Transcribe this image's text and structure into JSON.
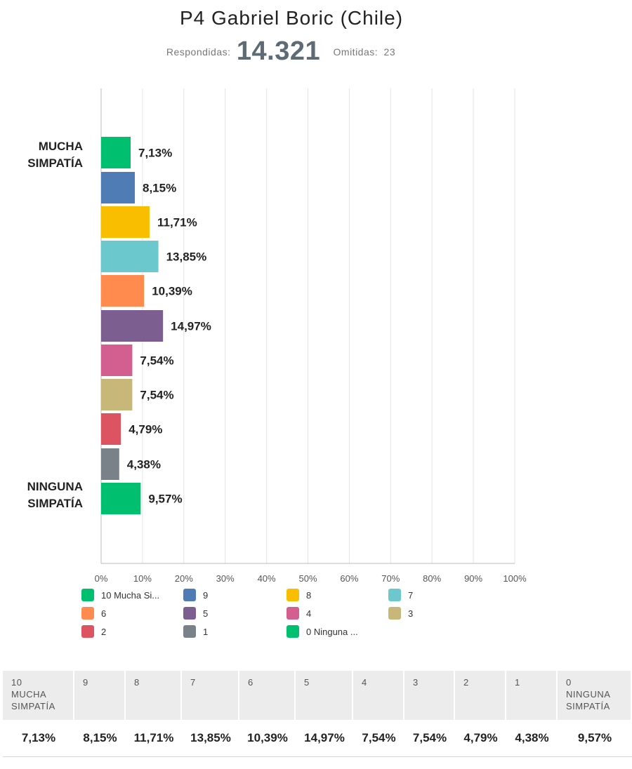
{
  "header": {
    "title": "P4 Gabriel Boric (Chile)",
    "answered_label": "Respondidas:",
    "answered_value": "14.321",
    "skipped_label": "Omitidas:",
    "skipped_value": "23"
  },
  "chart_data": {
    "type": "bar",
    "orientation": "horizontal",
    "categories": [
      "MUCHA SIMPATÍA",
      "NINGUNA SIMPATÍA"
    ],
    "series": [
      {
        "name": "10 Mucha Si...",
        "value": 7.13,
        "label": "7,13%",
        "color": "#00BF6F"
      },
      {
        "name": "9",
        "value": 8.15,
        "label": "8,15%",
        "color": "#507CB6"
      },
      {
        "name": "8",
        "value": 11.71,
        "label": "11,71%",
        "color": "#F9BE00"
      },
      {
        "name": "7",
        "value": 13.85,
        "label": "13,85%",
        "color": "#6BC8CD"
      },
      {
        "name": "6",
        "value": 10.39,
        "label": "10,39%",
        "color": "#FF8B4F"
      },
      {
        "name": "5",
        "value": 14.97,
        "label": "14,97%",
        "color": "#7D5E90"
      },
      {
        "name": "4",
        "value": 7.54,
        "label": "7,54%",
        "color": "#D25F90"
      },
      {
        "name": "3",
        "value": 7.54,
        "label": "7,54%",
        "color": "#C7B879"
      },
      {
        "name": "2",
        "value": 4.79,
        "label": "4,79%",
        "color": "#DC5462"
      },
      {
        "name": "1",
        "value": 4.38,
        "label": "4,38%",
        "color": "#7A8289"
      },
      {
        "name": "0 Ninguna ...",
        "value": 9.57,
        "label": "9,57%",
        "color": "#00BF6F"
      }
    ],
    "xlim": [
      0,
      100
    ],
    "xticks": [
      "0%",
      "10%",
      "20%",
      "30%",
      "40%",
      "50%",
      "60%",
      "70%",
      "80%",
      "90%",
      "100%"
    ],
    "grid": true,
    "legend_position": "bottom"
  },
  "table": {
    "headers": [
      "10\nMUCHA\nSIMPATÍA",
      "9",
      "8",
      "7",
      "6",
      "5",
      "4",
      "3",
      "2",
      "1",
      "0\nNINGUNA\nSIMPATÍA"
    ],
    "values": [
      "7,13%",
      "8,15%",
      "11,71%",
      "13,85%",
      "10,39%",
      "14,97%",
      "7,54%",
      "7,54%",
      "4,79%",
      "4,38%",
      "9,57%"
    ]
  }
}
